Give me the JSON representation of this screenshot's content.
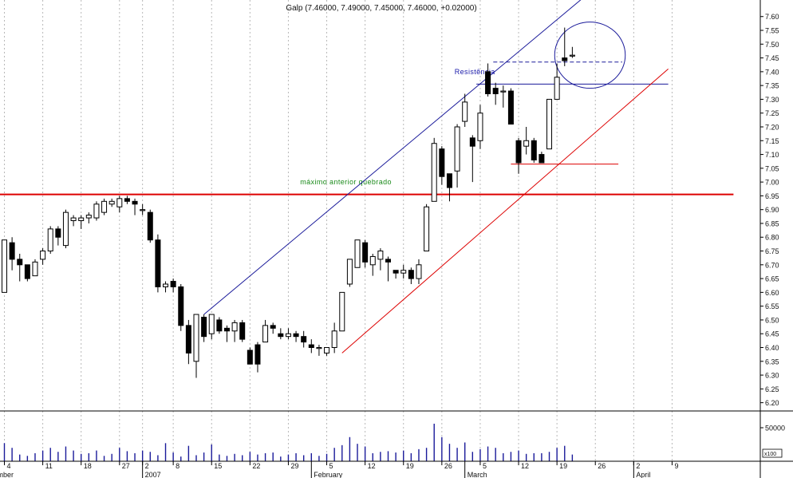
{
  "chart_data": {
    "type": "candlestick",
    "title": "Galp (7.46000, 7.49000, 7.45000, 7.46000, +0.02000)",
    "price_axis": {
      "ylim": [
        6.17,
        7.66
      ],
      "ticks": [
        "6.20",
        "6.25",
        "6.30",
        "6.35",
        "6.40",
        "6.45",
        "6.50",
        "6.55",
        "6.60",
        "6.65",
        "6.70",
        "6.75",
        "6.80",
        "6.85",
        "6.90",
        "6.95",
        "7.00",
        "7.05",
        "7.10",
        "7.15",
        "7.20",
        "7.25",
        "7.30",
        "7.35",
        "7.40",
        "7.45",
        "7.50",
        "7.55",
        "7.60"
      ]
    },
    "volume_axis": {
      "tick_label": "50000",
      "unit_label": "x100",
      "max_scale": 75000
    },
    "x_axis": {
      "day_ticks": [
        {
          "i": 0,
          "label": "4"
        },
        {
          "i": 5,
          "label": "11"
        },
        {
          "i": 10,
          "label": "18"
        },
        {
          "i": 15,
          "label": "27"
        },
        {
          "i": 18,
          "label": "2"
        },
        {
          "i": 22,
          "label": "8"
        },
        {
          "i": 27,
          "label": "15"
        },
        {
          "i": 32,
          "label": "22"
        },
        {
          "i": 37,
          "label": "29"
        },
        {
          "i": 42,
          "label": "5"
        },
        {
          "i": 47,
          "label": "12"
        },
        {
          "i": 52,
          "label": "19"
        },
        {
          "i": 57,
          "label": "26"
        },
        {
          "i": 62,
          "label": "5"
        },
        {
          "i": 67,
          "label": "12"
        },
        {
          "i": 72,
          "label": "19"
        },
        {
          "i": 77,
          "label": "26"
        },
        {
          "i": 82,
          "label": "2"
        },
        {
          "i": 87,
          "label": "9"
        }
      ],
      "month_labels": [
        {
          "i": 0,
          "label": "December"
        },
        {
          "i": 18,
          "label": "2007"
        },
        {
          "i": 40,
          "label": "February"
        },
        {
          "i": 60,
          "label": "March"
        },
        {
          "i": 82,
          "label": "April"
        }
      ]
    },
    "ohlc": [
      [
        6.6,
        6.79,
        6.6,
        6.79
      ],
      [
        6.78,
        6.8,
        6.68,
        6.72
      ],
      [
        6.72,
        6.74,
        6.64,
        6.7
      ],
      [
        6.7,
        6.7,
        6.64,
        6.65
      ],
      [
        6.66,
        6.72,
        6.66,
        6.71
      ],
      [
        6.72,
        6.76,
        6.7,
        6.75
      ],
      [
        6.75,
        6.84,
        6.74,
        6.83
      ],
      [
        6.83,
        6.84,
        6.77,
        6.8
      ],
      [
        6.77,
        6.9,
        6.76,
        6.89
      ],
      [
        6.86,
        6.88,
        6.84,
        6.87
      ],
      [
        6.86,
        6.88,
        6.83,
        6.87
      ],
      [
        6.87,
        6.89,
        6.85,
        6.88
      ],
      [
        6.87,
        6.93,
        6.86,
        6.92
      ],
      [
        6.89,
        6.94,
        6.88,
        6.93
      ],
      [
        6.92,
        6.94,
        6.91,
        6.93
      ],
      [
        6.91,
        6.95,
        6.89,
        6.94
      ],
      [
        6.94,
        6.95,
        6.92,
        6.93
      ],
      [
        6.93,
        6.94,
        6.88,
        6.92
      ],
      [
        6.9,
        6.92,
        6.88,
        6.9
      ],
      [
        6.89,
        6.9,
        6.78,
        6.79
      ],
      [
        6.79,
        6.81,
        6.6,
        6.62
      ],
      [
        6.62,
        6.64,
        6.6,
        6.63
      ],
      [
        6.64,
        6.65,
        6.6,
        6.62
      ],
      [
        6.62,
        6.63,
        6.46,
        6.48
      ],
      [
        6.48,
        6.5,
        6.34,
        6.38
      ],
      [
        6.35,
        6.52,
        6.29,
        6.52
      ],
      [
        6.51,
        6.52,
        6.42,
        6.44
      ],
      [
        6.45,
        6.52,
        6.43,
        6.52
      ],
      [
        6.5,
        6.51,
        6.45,
        6.46
      ],
      [
        6.47,
        6.48,
        6.42,
        6.46
      ],
      [
        6.46,
        6.5,
        6.42,
        6.49
      ],
      [
        6.49,
        6.5,
        6.42,
        6.43
      ],
      [
        6.39,
        6.4,
        6.34,
        6.34
      ],
      [
        6.41,
        6.42,
        6.31,
        6.34
      ],
      [
        6.42,
        6.5,
        6.42,
        6.48
      ],
      [
        6.48,
        6.49,
        6.45,
        6.47
      ],
      [
        6.45,
        6.47,
        6.43,
        6.44
      ],
      [
        6.44,
        6.47,
        6.43,
        6.45
      ],
      [
        6.45,
        6.46,
        6.42,
        6.44
      ],
      [
        6.44,
        6.46,
        6.4,
        6.42
      ],
      [
        6.41,
        6.43,
        6.38,
        6.4
      ],
      [
        6.4,
        6.41,
        6.37,
        6.4
      ],
      [
        6.38,
        6.4,
        6.37,
        6.4
      ],
      [
        6.4,
        6.49,
        6.38,
        6.46
      ],
      [
        6.46,
        6.6,
        6.46,
        6.6
      ],
      [
        6.63,
        6.72,
        6.62,
        6.72
      ],
      [
        6.69,
        6.79,
        6.69,
        6.79
      ],
      [
        6.78,
        6.79,
        6.69,
        6.71
      ],
      [
        6.7,
        6.74,
        6.66,
        6.73
      ],
      [
        6.72,
        6.76,
        6.68,
        6.75
      ],
      [
        6.72,
        6.73,
        6.64,
        6.71
      ],
      [
        6.68,
        6.68,
        6.65,
        6.67
      ],
      [
        6.67,
        6.7,
        6.65,
        6.68
      ],
      [
        6.68,
        6.69,
        6.63,
        6.65
      ],
      [
        6.65,
        6.72,
        6.63,
        6.7
      ],
      [
        6.75,
        6.92,
        6.75,
        6.91
      ],
      [
        6.93,
        7.16,
        6.93,
        7.14
      ],
      [
        7.12,
        7.13,
        6.99,
        7.02
      ],
      [
        7.03,
        7.03,
        6.93,
        6.98
      ],
      [
        7.04,
        7.21,
        6.98,
        7.2
      ],
      [
        7.22,
        7.32,
        7.2,
        7.29
      ],
      [
        7.16,
        7.17,
        7.0,
        7.13
      ],
      [
        7.15,
        7.28,
        7.12,
        7.25
      ],
      [
        7.4,
        7.43,
        7.31,
        7.32
      ],
      [
        7.34,
        7.36,
        7.28,
        7.32
      ],
      [
        7.33,
        7.35,
        7.27,
        7.33
      ],
      [
        7.33,
        7.34,
        7.21,
        7.21
      ],
      [
        7.15,
        7.16,
        7.03,
        7.07
      ],
      [
        7.13,
        7.2,
        7.1,
        7.15
      ],
      [
        7.15,
        7.16,
        7.07,
        7.08
      ],
      [
        7.1,
        7.11,
        7.07,
        7.07
      ],
      [
        7.12,
        7.3,
        7.12,
        7.3
      ],
      [
        7.3,
        7.43,
        7.3,
        7.38
      ],
      [
        7.45,
        7.56,
        7.42,
        7.44
      ],
      [
        7.46,
        7.49,
        7.45,
        7.46
      ]
    ],
    "volumes": [
      27000,
      20000,
      10000,
      8000,
      12000,
      16000,
      20000,
      14000,
      22000,
      16000,
      11000,
      12000,
      16000,
      8000,
      11000,
      20000,
      15000,
      12000,
      16000,
      14000,
      9000,
      27000,
      13000,
      7000,
      23000,
      9000,
      13000,
      25000,
      10000,
      8000,
      11000,
      9000,
      14000,
      10000,
      12000,
      13000,
      7000,
      10000,
      12000,
      9000,
      12000,
      8000,
      11000,
      20000,
      24000,
      36000,
      26000,
      22000,
      12000,
      14000,
      15000,
      13000,
      16000,
      12000,
      18000,
      20000,
      56000,
      36000,
      26000,
      20000,
      28000,
      14000,
      18000,
      22000,
      20000,
      12000,
      14000,
      16000,
      11000,
      12000,
      12000,
      14000,
      20000,
      23000,
      10000
    ],
    "annotations": [
      {
        "text": "Resistência",
        "kind": "label",
        "color": "#1a1aaa",
        "at": [
          61.3,
          7.4
        ]
      },
      {
        "text": "máximo anterior quebrado",
        "kind": "label",
        "color": "#1a8a1a",
        "at": [
          44.5,
          7.0
        ]
      },
      {
        "kind": "horizontal-line",
        "color": "#dd0000",
        "y": 6.955,
        "x": [
          -1,
          95
        ]
      },
      {
        "kind": "horizontal-line",
        "color": "#1a1a9a",
        "y": 7.355,
        "x": [
          61.5,
          86.5
        ]
      },
      {
        "kind": "horizontal-line-dashed",
        "color": "#1a1a9a",
        "y": 7.435,
        "x": [
          63.7,
          80.5
        ]
      },
      {
        "kind": "horizontal-line",
        "color": "#dd0000",
        "y": 7.065,
        "x": [
          66.0,
          80.0
        ]
      },
      {
        "kind": "trend-line",
        "color": "#1a1a9a",
        "from": [
          26.0,
          6.52
        ],
        "to": [
          75.5,
          7.67
        ]
      },
      {
        "kind": "trend-line",
        "color": "#dd0000",
        "from": [
          44.0,
          6.38
        ],
        "to": [
          86.5,
          7.41
        ]
      },
      {
        "kind": "ellipse",
        "color": "#1a1a9a",
        "center": [
          76.3,
          7.46
        ],
        "rx_days": 4.6,
        "ry_price": 0.12
      }
    ]
  }
}
